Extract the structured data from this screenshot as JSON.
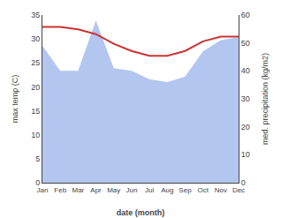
{
  "chart_data": {
    "type": "line",
    "categories": [
      "Jan",
      "Feb",
      "Mar",
      "Apr",
      "May",
      "Jun",
      "Jul",
      "Aug",
      "Sep",
      "Oct",
      "Nov",
      "Dec"
    ],
    "series": [
      {
        "type": "area",
        "axis": "y2",
        "color": "#b3c6f0",
        "values": [
          49,
          40,
          40,
          58,
          41,
          40,
          37,
          36,
          38,
          47,
          51,
          52
        ]
      },
      {
        "type": "line",
        "color": "#cc3333",
        "values": [
          32.5,
          32.5,
          32.0,
          31.0,
          29.0,
          27.5,
          26.5,
          26.5,
          27.5,
          29.5,
          30.5,
          30.5
        ]
      }
    ],
    "xlabel": "date (month)",
    "ylabel": "max temp (C)",
    "y2label": "med. precipitation (kg/m2)",
    "ylim": [
      0,
      35
    ],
    "yticks": [
      0,
      5,
      10,
      15,
      20,
      25,
      30,
      35
    ],
    "y2lim": [
      0,
      60
    ],
    "y2ticks": [
      0,
      10,
      20,
      30,
      40,
      50,
      60
    ],
    "grid": false
  }
}
